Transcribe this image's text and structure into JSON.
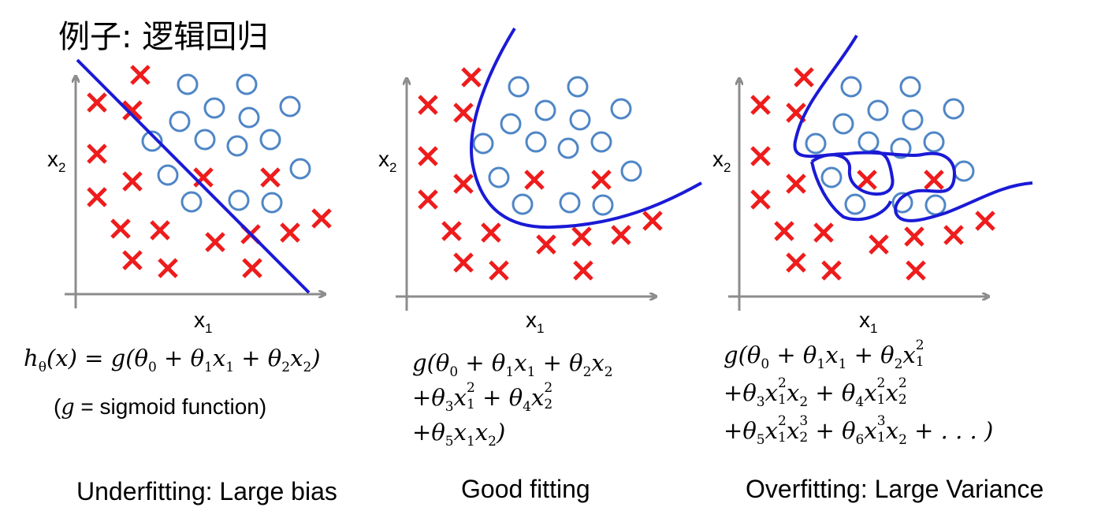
{
  "title": "例子: 逻辑回归",
  "axis_labels": {
    "x": "x",
    "x_sub": "1",
    "y": "x",
    "y_sub": "2"
  },
  "panels": [
    {
      "caption": "Underfitting: Large bias"
    },
    {
      "caption": "Good fitting"
    },
    {
      "caption": "Overfitting: Large Variance"
    }
  ],
  "sigmoid_note": {
    "open": "(",
    "g": "g",
    "rest": " = sigmoid function)"
  },
  "colors": {
    "cross": "#ee1c1c",
    "circle": "#4f86c6",
    "boundary": "#1a1ad6",
    "axis": "#8c8c8c"
  }
}
